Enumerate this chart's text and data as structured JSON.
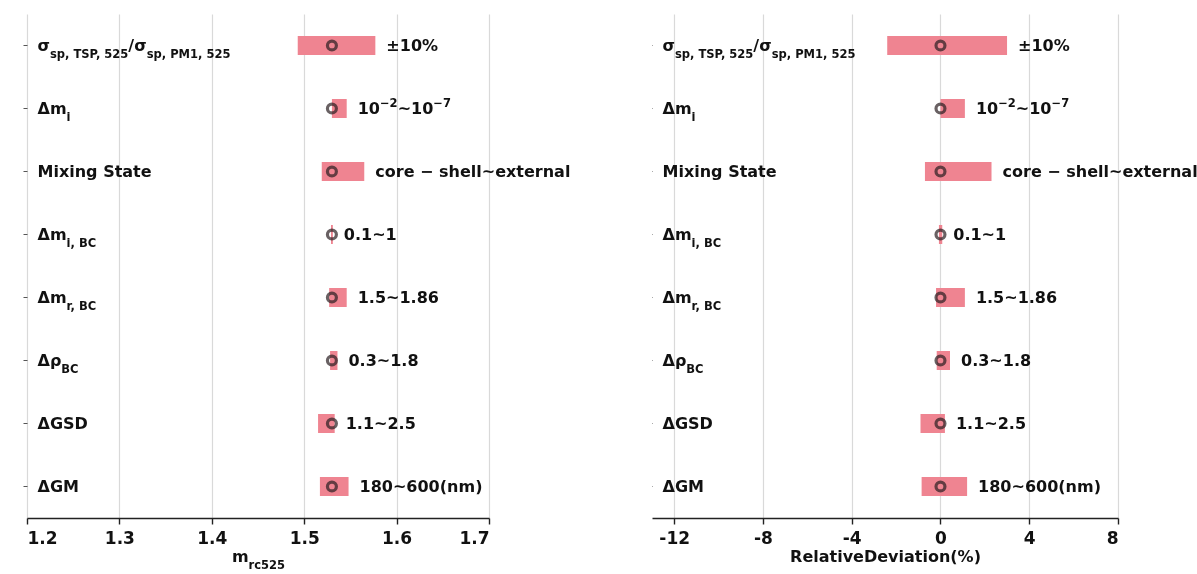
{
  "chart_data": [
    {
      "type": "bar",
      "orientation": "horizontal",
      "xlabel": "m$_{rc525}$",
      "categories": [
        "σ$_{sp, TSP, 525}$/σ$_{sp, PM1, 525}$",
        "Δm$_{i}$",
        "Mixing State",
        "Δm$_{i, BC}$",
        "Δm$_{r, BC}$",
        "Δρ$_{BC}$",
        "ΔGSD",
        "ΔGM"
      ],
      "xlim": [
        1.2,
        1.7
      ],
      "xticks": [
        1.2,
        1.3,
        1.4,
        1.5,
        1.6,
        1.7
      ],
      "grid": "x",
      "series": [
        {
          "type": "bar",
          "color": "#ef8491",
          "base": [
            1.493,
            1.53,
            1.519,
            1.529,
            1.527,
            1.528,
            1.515,
            1.517
          ],
          "values": [
            0.084,
            0.016,
            0.046,
            0.002,
            0.019,
            0.008,
            0.018,
            0.031
          ]
        },
        {
          "type": "scatter",
          "color": "#2a1f22",
          "marker": "circle",
          "values": [
            1.53,
            1.53,
            1.53,
            1.53,
            1.53,
            1.53,
            1.53,
            1.53
          ]
        }
      ],
      "annotations": [
        {
          "text": "±10%",
          "x": 1.577,
          "y": "σ$_{sp, TSP, 525}$/σ$_{sp, PM1, 525}$"
        },
        {
          "text": "10$^{−2}$~10$^{−7}$",
          "x": 1.546,
          "y": "Δm$_{i}$"
        },
        {
          "text": "core − shell~external",
          "x": 1.565,
          "y": "Mixing State"
        },
        {
          "text": "0.1~1",
          "x": 1.531,
          "y": "Δm$_{i, BC}$"
        },
        {
          "text": "1.5~1.86",
          "x": 1.546,
          "y": "Δm$_{r, BC}$"
        },
        {
          "text": "0.3~1.8",
          "x": 1.536,
          "y": "Δρ$_{BC}$"
        },
        {
          "text": "1.1~2.5",
          "x": 1.533,
          "y": "ΔGSD"
        },
        {
          "text": "180~600(nm)",
          "x": 1.548,
          "y": "ΔGM"
        }
      ]
    },
    {
      "type": "bar",
      "orientation": "horizontal",
      "xlabel": "RelativeDeviation(%)",
      "categories": [
        "σ$_{sp, TSP, 525}$/σ$_{sp, PM1, 525}$",
        "Δm$_{i}$",
        "Mixing State",
        "Δm$_{i, BC}$",
        "Δm$_{r, BC}$",
        "Δρ$_{BC}$",
        "ΔGSD",
        "ΔGM"
      ],
      "xlim": [
        -13,
        8
      ],
      "xticks": [
        -12,
        -8,
        -4,
        0,
        4,
        8
      ],
      "grid": "x",
      "series": [
        {
          "type": "bar",
          "color": "#ef8491",
          "base": [
            -2.4,
            0,
            -0.7,
            -0.07,
            -0.2,
            -0.17,
            -0.9,
            -0.85
          ],
          "values": [
            5.4,
            1.1,
            3.0,
            0.15,
            1.3,
            0.6,
            1.1,
            2.05
          ]
        },
        {
          "type": "scatter",
          "color": "#2a1f22",
          "marker": "circle",
          "values": [
            0,
            0,
            0,
            0,
            0,
            0,
            0,
            0
          ]
        }
      ],
      "annotations": [
        {
          "text": "±10%",
          "x": 3.0,
          "y": "σ$_{sp, TSP, 525}$/σ$_{sp, PM1, 525}$"
        },
        {
          "text": "10$^{−2}$~10$^{−7}$",
          "x": 1.1,
          "y": "Δm$_{i}$"
        },
        {
          "text": "core − shell~external",
          "x": 2.3,
          "y": "Mixing State"
        },
        {
          "text": "0.1~1",
          "x": 0.08,
          "y": "Δm$_{i, BC}$"
        },
        {
          "text": "1.5~1.86",
          "x": 1.1,
          "y": "Δm$_{r, BC}$"
        },
        {
          "text": "0.3~1.8",
          "x": 0.43,
          "y": "Δρ$_{BC}$"
        },
        {
          "text": "1.1~2.5",
          "x": 0.2,
          "y": "ΔGSD"
        },
        {
          "text": "180~600(nm)",
          "x": 1.2,
          "y": "ΔGM"
        }
      ]
    }
  ]
}
